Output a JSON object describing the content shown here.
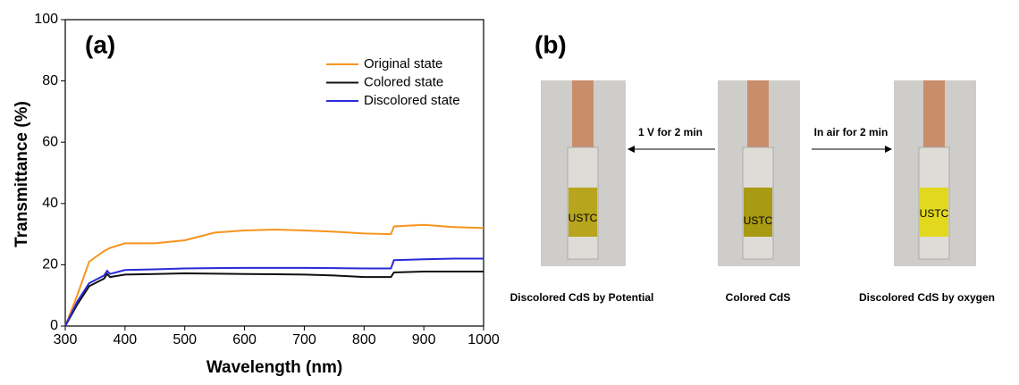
{
  "chart_data": {
    "type": "line",
    "title": "(a)",
    "x_label": "Wavelength (nm)",
    "y_label": "Transmittance (%)",
    "x": [
      300,
      320,
      340,
      365,
      370,
      375,
      400,
      450,
      500,
      550,
      600,
      650,
      700,
      750,
      800,
      845,
      850,
      900,
      950,
      1000
    ],
    "series": [
      {
        "name": "Original state",
        "color": "#f7941d",
        "values": [
          0,
          10,
          21,
          24.5,
          25,
          25.5,
          27,
          27,
          28,
          30.5,
          31.2,
          31.5,
          31.2,
          30.8,
          30.2,
          30,
          32.5,
          33,
          32.3,
          32
        ]
      },
      {
        "name": "Colored state",
        "color": "#111111",
        "values": [
          0,
          7,
          13,
          15.5,
          17,
          16,
          16.8,
          17,
          17.2,
          17.1,
          17,
          16.9,
          16.8,
          16.5,
          16,
          16,
          17.5,
          17.8,
          17.8,
          17.8
        ]
      },
      {
        "name": "Discolored state",
        "color": "#2a2ad8",
        "values": [
          0,
          8,
          14,
          16.5,
          18,
          17,
          18.3,
          18.5,
          18.8,
          18.9,
          19,
          19,
          19,
          18.9,
          18.8,
          18.8,
          21.5,
          21.8,
          22,
          22
        ]
      }
    ],
    "xlim": [
      300,
      1000
    ],
    "ylim": [
      0,
      100
    ],
    "xticks": [
      300,
      400,
      500,
      600,
      700,
      800,
      900,
      1000
    ],
    "yticks": [
      0,
      20,
      40,
      60,
      80,
      100
    ],
    "legend": "upper right"
  },
  "photo_panel": {
    "title": "(b)",
    "watermark": "USTC",
    "arrows": [
      "1 V for 2 min",
      "In air for 2 min"
    ],
    "captions": [
      "Discolored CdS by Potential",
      "Colored CdS",
      "Discolored CdS by oxygen"
    ]
  }
}
